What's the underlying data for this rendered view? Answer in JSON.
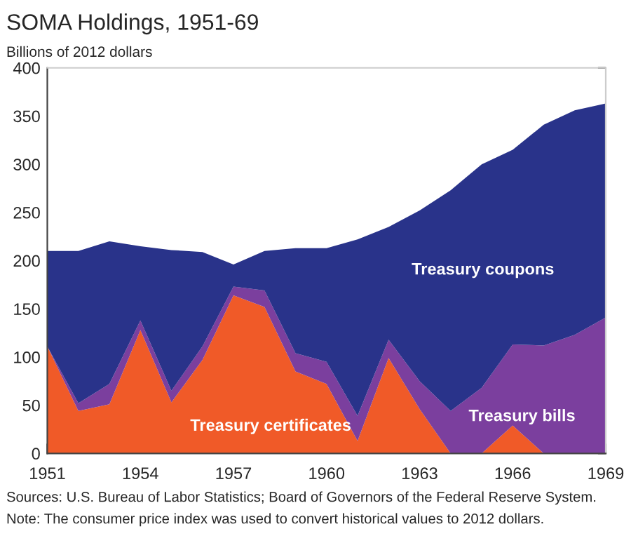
{
  "chart_data": {
    "type": "area",
    "stacked": true,
    "title": "SOMA Holdings, 1951-69",
    "subtitle": "Billions of 2012 dollars",
    "x": [
      1951,
      1952,
      1953,
      1954,
      1955,
      1956,
      1957,
      1958,
      1959,
      1960,
      1961,
      1962,
      1963,
      1964,
      1965,
      1966,
      1967,
      1968,
      1969
    ],
    "series": [
      {
        "name": "Treasury certificates",
        "color": "#f05a28",
        "values": [
          111,
          44,
          51,
          128,
          53,
          97,
          164,
          152,
          85,
          72,
          13,
          99,
          46,
          0,
          0,
          29,
          0,
          0,
          0
        ]
      },
      {
        "name": "Treasury bills",
        "color": "#7b3f9e",
        "values": [
          0,
          8,
          21,
          10,
          12,
          14,
          9,
          17,
          19,
          23,
          26,
          19,
          29,
          44,
          68,
          84,
          112,
          123,
          141
        ]
      },
      {
        "name": "Treasury coupons",
        "color": "#29338a",
        "values": [
          99,
          158,
          148,
          77,
          146,
          98,
          23,
          41,
          109,
          118,
          183,
          117,
          177,
          229,
          232,
          202,
          229,
          233,
          222
        ]
      }
    ],
    "xlim": [
      1951,
      1969
    ],
    "xticks": [
      1951,
      1954,
      1957,
      1960,
      1963,
      1966,
      1969
    ],
    "ylim": [
      0,
      400
    ],
    "yticks": [
      0,
      50,
      100,
      150,
      200,
      250,
      300,
      350,
      400
    ],
    "grid": false,
    "legend": false,
    "annotations": [
      "Sources: U.S. Bureau of Labor Statistics; Board of Governors of the Federal Reserve System.",
      "Note: The consumer price index was used to convert historical values to 2012 dollars."
    ]
  }
}
